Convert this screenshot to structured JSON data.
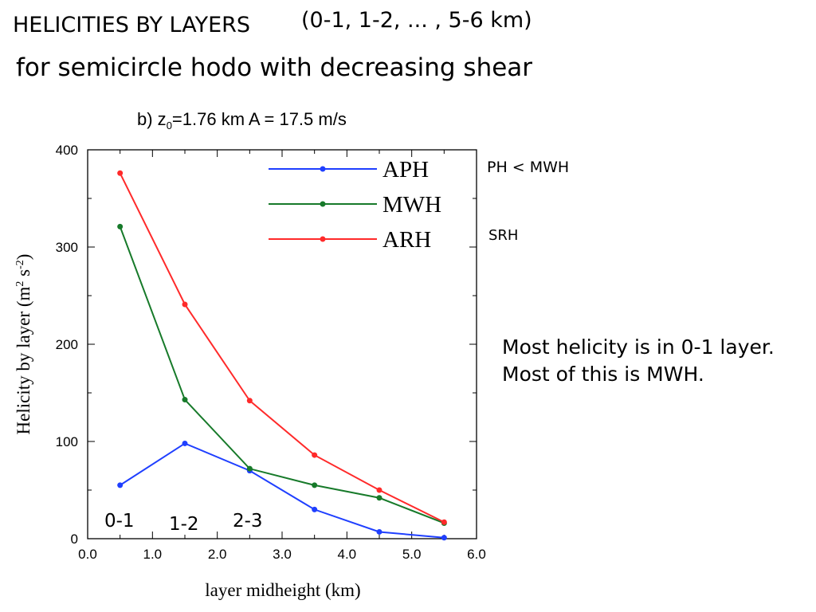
{
  "slide": {
    "title_main": "HELICITIES BY LAYERS",
    "title_range": "(0-1, 1-2, ... , 5-6  km)",
    "subtitle": "for semicircle hodo with decreasing shear",
    "side_note_1": "PH < MWH",
    "side_note_2": "SRH",
    "note_line_1": "Most helicity is in 0-1 layer.",
    "note_line_2": "Most of this is MWH."
  },
  "chart_data": {
    "type": "line",
    "panel_title": "b)  z0=1.76 km    A = 17.5 m/s",
    "panel_prefix": "b)  z",
    "panel_sub": "0",
    "panel_rest": "=1.76 km    A = 17.5 m/s",
    "xlabel": "layer midheight (km)",
    "ylabel": "Helicity by layer (m2 s-2)",
    "ylabel_main": "Helicity by layer (m",
    "ylabel_sup1": "2",
    "ylabel_mid": " s",
    "ylabel_sup2": "-2",
    "ylabel_end": ")",
    "xlim": [
      0,
      6
    ],
    "ylim": [
      0,
      400
    ],
    "x_ticks": [
      "0.0",
      "1.0",
      "2.0",
      "3.0",
      "4.0",
      "5.0",
      "6.0"
    ],
    "y_ticks": [
      "0",
      "100",
      "200",
      "300",
      "400"
    ],
    "legend_position": "top-right",
    "grid": false,
    "x": [
      0.5,
      1.5,
      2.5,
      3.5,
      4.5,
      5.5
    ],
    "series": [
      {
        "name": "APH",
        "color": "#1f3fff",
        "values": [
          55,
          98,
          70,
          30,
          7,
          1
        ]
      },
      {
        "name": "MWH",
        "color": "#177a2a",
        "values": [
          321,
          143,
          72,
          55,
          42,
          16
        ]
      },
      {
        "name": "ARH",
        "color": "#ff2a2a",
        "values": [
          376,
          241,
          142,
          86,
          50,
          17
        ]
      }
    ],
    "layer_annotations": [
      "0-1",
      "1-2",
      "2-3"
    ]
  }
}
